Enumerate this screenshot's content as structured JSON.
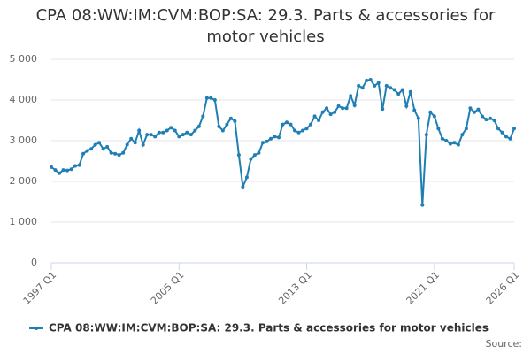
{
  "chart_data": {
    "type": "line",
    "title": "CPA 08:WW:IM:CVM:BOP:SA: 29.3. Parts & accessories for motor vehicles",
    "source_label": "Source:",
    "categories": [
      "1997 Q1",
      null,
      null,
      null,
      null,
      null,
      null,
      null,
      null,
      null,
      null,
      null,
      null,
      null,
      null,
      null,
      null,
      null,
      null,
      null,
      null,
      null,
      null,
      null,
      null,
      null,
      null,
      null,
      null,
      null,
      null,
      null,
      "2005 Q1",
      null,
      null,
      null,
      null,
      null,
      null,
      null,
      null,
      null,
      null,
      null,
      null,
      null,
      null,
      null,
      null,
      null,
      null,
      null,
      null,
      null,
      null,
      null,
      null,
      null,
      null,
      null,
      null,
      null,
      null,
      null,
      "2013 Q1",
      null,
      null,
      null,
      null,
      null,
      null,
      null,
      null,
      null,
      null,
      null,
      null,
      null,
      null,
      null,
      null,
      null,
      null,
      null,
      null,
      null,
      null,
      null,
      null,
      null,
      null,
      null,
      null,
      null,
      null,
      null,
      "2021 Q1",
      null,
      null,
      null,
      null,
      null,
      null,
      null,
      null,
      null,
      null,
      null,
      null,
      null,
      null,
      null,
      null,
      null,
      null,
      null,
      "2026 Q1"
    ],
    "series": [
      {
        "name": "CPA 08:WW:IM:CVM:BOP:SA: 29.3. Parts & accessories for motor vehicles",
        "color": "#1f7fb4",
        "values": [
          2350,
          2280,
          2200,
          2280,
          2270,
          2300,
          2380,
          2400,
          2680,
          2750,
          2800,
          2900,
          2950,
          2800,
          2850,
          2700,
          2680,
          2650,
          2700,
          2900,
          3050,
          2950,
          3250,
          2900,
          3150,
          3150,
          3100,
          3200,
          3200,
          3250,
          3320,
          3250,
          3100,
          3150,
          3200,
          3150,
          3250,
          3350,
          3600,
          4050,
          4050,
          4000,
          3350,
          3250,
          3400,
          3550,
          3480,
          2650,
          1870,
          2100,
          2550,
          2650,
          2700,
          2950,
          2980,
          3050,
          3100,
          3080,
          3400,
          3450,
          3400,
          3250,
          3200,
          3250,
          3300,
          3400,
          3600,
          3500,
          3700,
          3800,
          3650,
          3700,
          3850,
          3800,
          3800,
          4100,
          3870,
          4350,
          4300,
          4480,
          4500,
          4350,
          4420,
          3780,
          4350,
          4300,
          4250,
          4150,
          4250,
          3850,
          4200,
          3750,
          3550,
          1420,
          3150,
          3700,
          3600,
          3300,
          3050,
          3000,
          2920,
          2950,
          2900,
          3150,
          3300,
          3800,
          3700,
          3770,
          3600,
          3520,
          3550,
          3500,
          3300,
          3200,
          3100,
          3050,
          3300
        ]
      }
    ],
    "ylim": [
      0,
      5000
    ],
    "yticks": [
      0,
      {
        "value": 1000,
        "label": "1 000"
      },
      {
        "value": 2000,
        "label": "2 000"
      },
      {
        "value": 3000,
        "label": "3 000"
      },
      {
        "value": 4000,
        "label": "4 000"
      },
      {
        "value": 5000,
        "label": "5 000"
      }
    ],
    "grid": true
  }
}
